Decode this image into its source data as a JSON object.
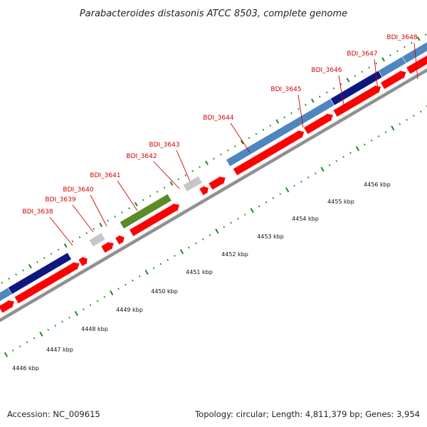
{
  "title": "Parabacteroides distasonis ATCC 8503, complete genome",
  "footer": {
    "accession": "Accession: NC_009615",
    "summary": "Topology: circular; Length: 4,811,379 bp; Genes: 3,954"
  },
  "colors": {
    "cds": "#ff0000",
    "light_blue": "#4f86c0",
    "navy": "#0d1780",
    "olive": "#5b8a28",
    "gray": "#c6c6c6",
    "ticks": "#1e8a1e",
    "backbone": "#8f8f8f",
    "label": "#d40000"
  },
  "ruler_labels": [
    "4446 kbp",
    "4447 kbp",
    "4448 kbp",
    "4449 kbp",
    "4450 kbp",
    "4451 kbp",
    "4452 kbp",
    "4453 kbp",
    "4454 kbp",
    "4455 kbp",
    "4456 kbp"
  ],
  "genes": [
    {
      "label": "BDI_3638"
    },
    {
      "label": "BDI_3639"
    },
    {
      "label": "BDI_3640"
    },
    {
      "label": "BDI_3641"
    },
    {
      "label": "BDI_3642"
    },
    {
      "label": "BDI_3643"
    },
    {
      "label": "BDI_3644"
    },
    {
      "label": "BDI_3645"
    },
    {
      "label": "BDI_3646"
    },
    {
      "label": "BDI_3647"
    },
    {
      "label": "BDI_3648"
    }
  ]
}
